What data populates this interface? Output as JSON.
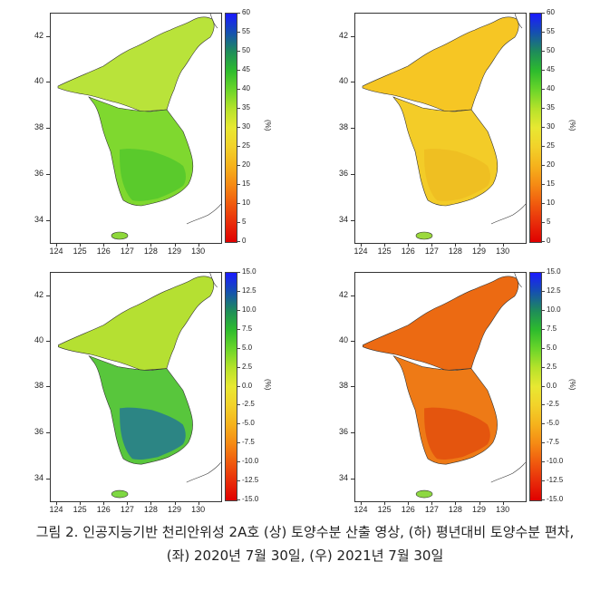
{
  "caption": {
    "line1": "그림 2. 인공지능기반 천리안위성 2A호 (상) 토양수분 산출 영상, (하) 평년대비 토양수분 편차,",
    "line2": "(좌) 2020년 7월 30일, (우) 2021년 7월 30일"
  },
  "axes": {
    "y_ticks": [
      "42",
      "40",
      "38",
      "36",
      "34"
    ],
    "x_ticks": [
      "124",
      "125",
      "126",
      "127",
      "128",
      "129",
      "130"
    ]
  },
  "colorbars": {
    "soil_moisture": {
      "labels": [
        "60",
        "55",
        "50",
        "45",
        "40",
        "35",
        "30",
        "25",
        "20",
        "15",
        "10",
        "5",
        "0"
      ],
      "unit": "(%)",
      "colors": [
        "#1a1aff",
        "#1550b0",
        "#1e8c5a",
        "#2dbb2d",
        "#6ad52a",
        "#b6e22a",
        "#e8e832",
        "#f2d22a",
        "#f5b21c",
        "#f58a14",
        "#f05a0e",
        "#e82c0a",
        "#e00000"
      ]
    },
    "anomaly": {
      "labels": [
        "15.0",
        "12.5",
        "10.0",
        "7.5",
        "5.0",
        "2.5",
        "0.0",
        "-2.5",
        "-5.0",
        "-7.5",
        "-10.0",
        "-12.5",
        "-15.0"
      ],
      "unit": "(%)",
      "colors": [
        "#1a1aff",
        "#1550b0",
        "#1e8c5a",
        "#2dbb2d",
        "#6ad52a",
        "#b6e22a",
        "#e8e832",
        "#f2d22a",
        "#f5b21c",
        "#f58a14",
        "#f05a0e",
        "#e82c0a",
        "#e00000"
      ]
    }
  },
  "maps": [
    {
      "id": "top-left",
      "north_color": "#b9e33a",
      "south_color": "#7fd82f",
      "south_dark": "#4ec52c",
      "island_color": "#8ed83a",
      "colorbar": "soil_moisture"
    },
    {
      "id": "top-right",
      "north_color": "#f6c624",
      "south_color": "#f3cc28",
      "south_dark": "#eebb20",
      "island_color": "#9bd93c",
      "colorbar": "soil_moisture"
    },
    {
      "id": "bottom-left",
      "north_color": "#b5e032",
      "south_color": "#58c63c",
      "south_dark": "#1e6f9c",
      "island_color": "#7ed842",
      "colorbar": "anomaly"
    },
    {
      "id": "bottom-right",
      "north_color": "#ec6a12",
      "south_color": "#ee7a16",
      "south_dark": "#e04a0c",
      "island_color": "#8ed842",
      "colorbar": "anomaly"
    }
  ]
}
